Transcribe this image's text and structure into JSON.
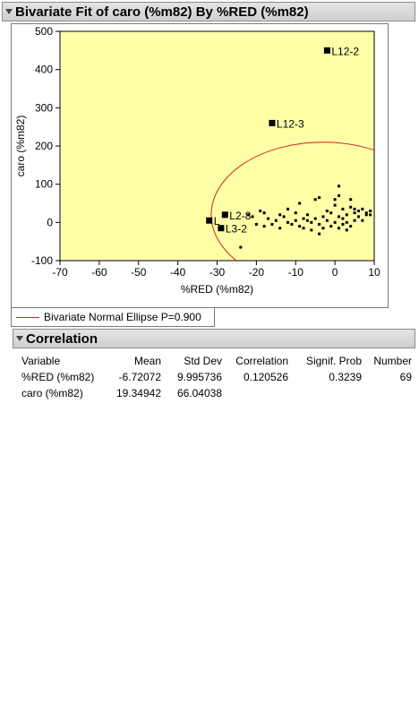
{
  "report": {
    "bivariate_title": "Bivariate Fit of caro (%m82) By %RED (%m82)",
    "correlation_title": "Correlation"
  },
  "legend": {
    "ellipse_label": "Bivariate Normal Ellipse P=0.900"
  },
  "colors": {
    "plot_bg": "#ffffa8",
    "ellipse": "#d62020",
    "points": "#000000"
  },
  "correlation_table": {
    "headers": [
      "Variable",
      "Mean",
      "Std Dev",
      "Correlation",
      "Signif. Prob",
      "Number"
    ],
    "rows": [
      [
        "%RED (%m82)",
        "-6.72072",
        "9.995736",
        "0.120526",
        "0.3239",
        "69"
      ],
      [
        "caro (%m82)",
        "19.34942",
        "66.04038",
        "",
        "",
        ""
      ]
    ]
  },
  "chart_data": {
    "type": "scatter",
    "xlabel": "%RED (%m82)",
    "ylabel": "caro (%m82)",
    "xlim": [
      -70,
      10
    ],
    "ylim": [
      -100,
      500
    ],
    "xticks": [
      -70,
      -60,
      -50,
      -40,
      -30,
      -20,
      -10,
      0,
      10
    ],
    "yticks": [
      -100,
      0,
      100,
      200,
      300,
      400,
      500
    ],
    "ellipse": {
      "cx": -3,
      "cy": 20,
      "rx": 28.5,
      "ry": 190,
      "p": 0.9
    },
    "labeled_points": [
      {
        "x": -2,
        "y": 450,
        "label": "L12-2"
      },
      {
        "x": -16,
        "y": 260,
        "label": "L12-3"
      },
      {
        "x": -28,
        "y": 20,
        "label": "L2-8"
      },
      {
        "x": -29,
        "y": -15,
        "label": "L3-2"
      },
      {
        "x": -32,
        "y": 5,
        "label": "L"
      }
    ],
    "points": [
      {
        "x": -24,
        "y": -65
      },
      {
        "x": -22,
        "y": 20
      },
      {
        "x": -21,
        "y": 15
      },
      {
        "x": -20,
        "y": -5
      },
      {
        "x": -19,
        "y": 30
      },
      {
        "x": -18,
        "y": 25
      },
      {
        "x": -18,
        "y": -10
      },
      {
        "x": -17,
        "y": 10
      },
      {
        "x": -16,
        "y": -5
      },
      {
        "x": -15,
        "y": 5
      },
      {
        "x": -14,
        "y": -15
      },
      {
        "x": -14,
        "y": 20
      },
      {
        "x": -13,
        "y": 15
      },
      {
        "x": -12,
        "y": 0
      },
      {
        "x": -12,
        "y": 35
      },
      {
        "x": -11,
        "y": -5
      },
      {
        "x": -10,
        "y": 25
      },
      {
        "x": -10,
        "y": 5
      },
      {
        "x": -9,
        "y": 50
      },
      {
        "x": -9,
        "y": -10
      },
      {
        "x": -8,
        "y": 10
      },
      {
        "x": -8,
        "y": -15
      },
      {
        "x": -7,
        "y": 5
      },
      {
        "x": -7,
        "y": 20
      },
      {
        "x": -6,
        "y": -20
      },
      {
        "x": -6,
        "y": 0
      },
      {
        "x": -5,
        "y": 60
      },
      {
        "x": -5,
        "y": 10
      },
      {
        "x": -4,
        "y": -30
      },
      {
        "x": -4,
        "y": 65
      },
      {
        "x": -4,
        "y": -5
      },
      {
        "x": -3,
        "y": 15
      },
      {
        "x": -3,
        "y": -15
      },
      {
        "x": -2,
        "y": 5
      },
      {
        "x": -2,
        "y": 30
      },
      {
        "x": -1,
        "y": -10
      },
      {
        "x": -1,
        "y": 25
      },
      {
        "x": 0,
        "y": 45
      },
      {
        "x": 0,
        "y": 0
      },
      {
        "x": 0,
        "y": 60
      },
      {
        "x": 1,
        "y": 15
      },
      {
        "x": 1,
        "y": -15
      },
      {
        "x": 1,
        "y": 95
      },
      {
        "x": 2,
        "y": 10
      },
      {
        "x": 2,
        "y": -5
      },
      {
        "x": 2,
        "y": 35
      },
      {
        "x": 3,
        "y": 20
      },
      {
        "x": 3,
        "y": 0
      },
      {
        "x": 4,
        "y": -10
      },
      {
        "x": 4,
        "y": 40
      },
      {
        "x": 4,
        "y": 60
      },
      {
        "x": 5,
        "y": 5
      },
      {
        "x": 5,
        "y": 25
      },
      {
        "x": 5,
        "y": 35
      },
      {
        "x": 6,
        "y": 15
      },
      {
        "x": 6,
        "y": 30
      },
      {
        "x": 7,
        "y": 35
      },
      {
        "x": 7,
        "y": 5
      },
      {
        "x": 8,
        "y": 20
      },
      {
        "x": 8,
        "y": 25
      },
      {
        "x": 9,
        "y": 20
      },
      {
        "x": 9,
        "y": 30
      },
      {
        "x": 3,
        "y": -20
      },
      {
        "x": 1,
        "y": 70
      }
    ]
  }
}
